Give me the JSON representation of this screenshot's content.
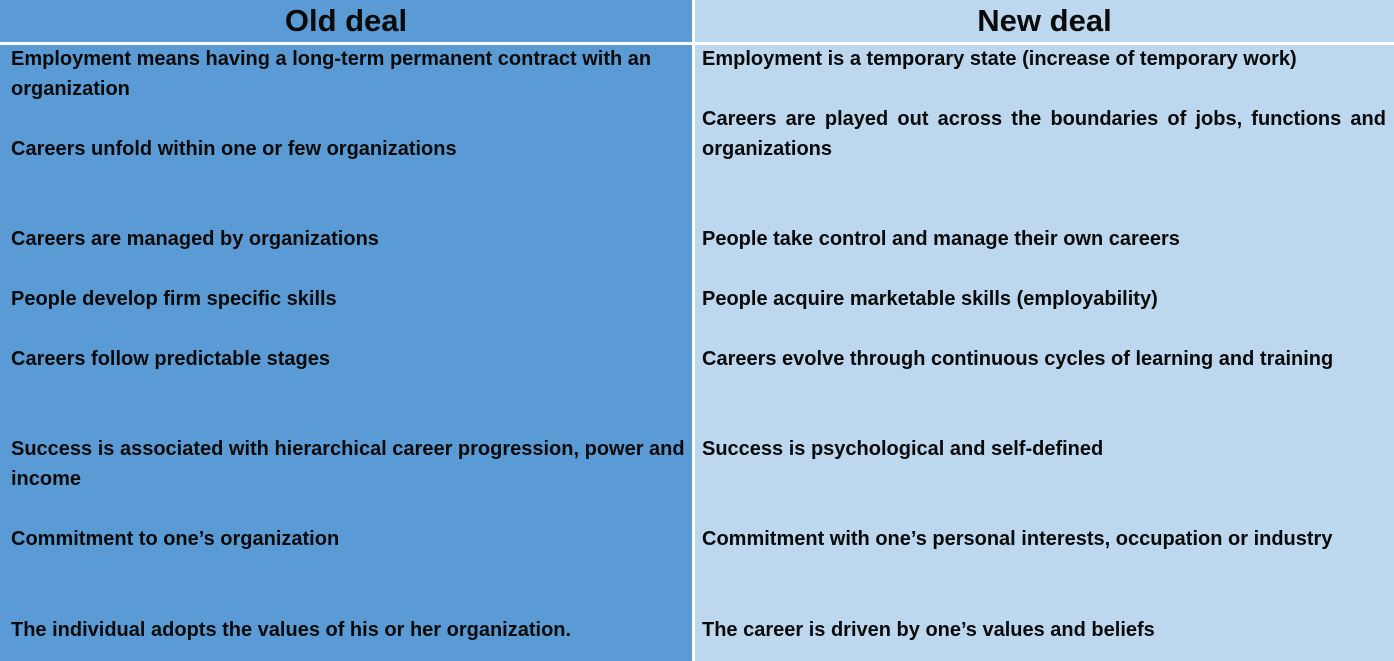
{
  "old_deal": {
    "title": "Old deal",
    "items": [
      "Employment means having a long-term permanent contract with an organization",
      "Careers unfold within one or few organizations",
      "Careers are managed by organizations",
      "People develop firm specific skills",
      "Careers follow predictable stages",
      "Success is associated with hierarchical career progression, power and income",
      "Commitment to one’s organization",
      "The individual adopts the values of his or her organization."
    ]
  },
  "new_deal": {
    "title": "New deal",
    "items": [
      "Employment is a temporary state (increase of temporary work)",
      "Careers are played out across the boundaries of jobs, functions and organizations",
      "People take control and manage their own careers",
      "People acquire marketable skills (employability)",
      "Careers evolve through continuous cycles of learning and training",
      "Success is psychological and self-defined",
      "Commitment with one’s personal interests, occupation or industry",
      "The career is driven by one’s values and beliefs"
    ]
  },
  "colors": {
    "old_column": "#5b9bd5",
    "new_column": "#bdd7ee",
    "divider": "#ffffff",
    "text": "#0a0a0a"
  }
}
